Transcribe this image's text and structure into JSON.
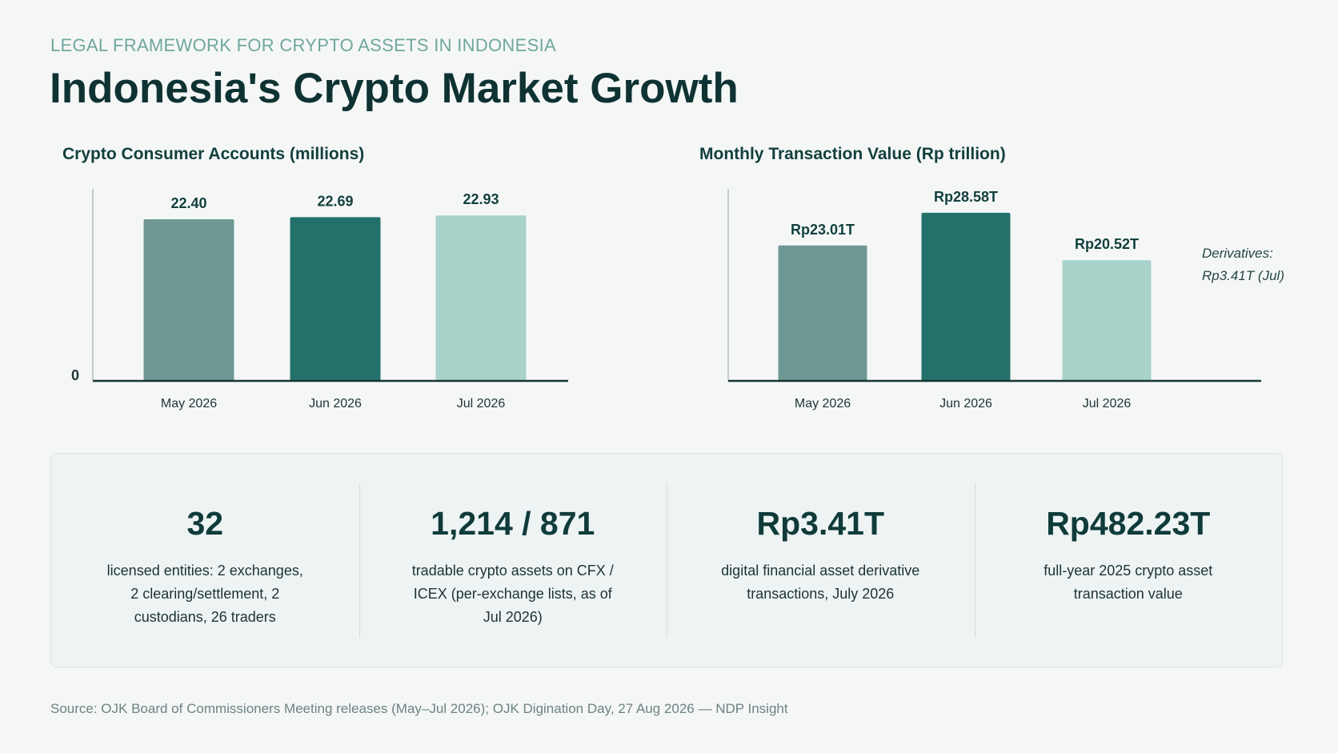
{
  "header": {
    "eyebrow": "LEGAL FRAMEWORK FOR CRYPTO ASSETS IN INDONESIA",
    "title": "Indonesia's Crypto Market Growth"
  },
  "chart_data": [
    {
      "type": "bar",
      "title": "Crypto Consumer Accounts (millions)",
      "categories": [
        "May 2026",
        "Jun 2026",
        "Jul 2026"
      ],
      "values": [
        22.4,
        22.69,
        22.93
      ],
      "data_labels": [
        "22.40",
        "22.69",
        "22.93"
      ],
      "colors": [
        "#6f9894",
        "#24716b",
        "#a7d3ca"
      ],
      "ylim": [
        0,
        26.5
      ],
      "y_tick_labels": [
        "0"
      ],
      "grid": false
    },
    {
      "type": "bar",
      "title": "Monthly Transaction Value (Rp trillion)",
      "categories": [
        "May 2026",
        "Jun 2026",
        "Jul 2026"
      ],
      "values": [
        23.01,
        28.58,
        20.52
      ],
      "data_labels": [
        "Rp23.01T",
        "Rp28.58T",
        "Rp20.52T"
      ],
      "colors": [
        "#6f9894",
        "#24716b",
        "#a7d3ca"
      ],
      "ylim": [
        0,
        32.5
      ],
      "grid": false,
      "annotation": [
        "Derivatives:",
        "Rp3.41T (Jul)"
      ]
    }
  ],
  "stats": [
    {
      "value": "32",
      "description": "licensed entities: 2 exchanges, 2 clearing/settlement, 2 custodians, 26 traders"
    },
    {
      "value": "1,214 / 871",
      "description": "tradable crypto assets on CFX / ICEX (per-exchange lists, as of Jul 2026)"
    },
    {
      "value": "Rp3.41T",
      "description": "digital financial asset derivative transactions, July 2026"
    },
    {
      "value": "Rp482.23T",
      "description": "full-year 2025 crypto asset transaction value"
    }
  ],
  "source": "Source: OJK Board of Commissioners Meeting releases (May–Jul 2026); OJK Digination Day, 27 Aug 2026 — NDP Insight"
}
